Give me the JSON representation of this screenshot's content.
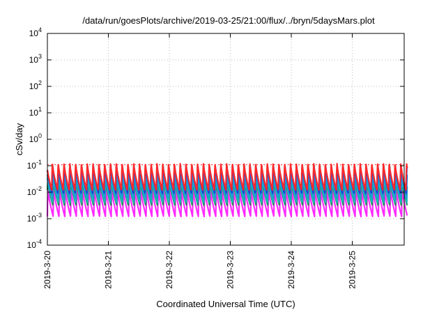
{
  "chart_data": {
    "type": "line",
    "title": "/data/run/goesPlots/archive/2019-03-25/21:00/flux/../bryn/5daysMars.plot",
    "xlabel": "Coordinated Universal Time (UTC)",
    "ylabel": "cSv/day",
    "yscale": "log",
    "ylim": [
      0.0001,
      10000
    ],
    "y_tick_labels": [
      {
        "base": "10",
        "exp": "-4"
      },
      {
        "base": "10",
        "exp": "-3"
      },
      {
        "base": "10",
        "exp": "-2"
      },
      {
        "base": "10",
        "exp": "-1"
      },
      {
        "base": "10",
        "exp": "0"
      },
      {
        "base": "10",
        "exp": "1"
      },
      {
        "base": "10",
        "exp": "2"
      },
      {
        "base": "10",
        "exp": "3"
      },
      {
        "base": "10",
        "exp": "4"
      }
    ],
    "x_tick_labels": [
      "2019-3-20",
      "2019-3-21",
      "2019-3-22",
      "2019-3-23",
      "2019-3-24",
      "2019-3-25"
    ],
    "x_day_range": [
      0,
      5.9
    ],
    "grid": true,
    "cycles_per_day": 10.5,
    "series": [
      {
        "color": "#ff2a2a",
        "peak": 0.12,
        "trough": 0.012
      },
      {
        "color": "#1f3fd8",
        "peak": 0.1,
        "trough": 0.009
      },
      {
        "color": "#1e9ad8",
        "peak": 0.055,
        "trough": 0.006
      },
      {
        "color": "#17b8b8",
        "peak": 0.035,
        "trough": 0.004
      },
      {
        "color": "#2d8a5a",
        "peak": 0.025,
        "trough": 0.0032
      },
      {
        "color": "#ff2aff",
        "peak": 0.012,
        "trough": 0.0012
      }
    ]
  }
}
